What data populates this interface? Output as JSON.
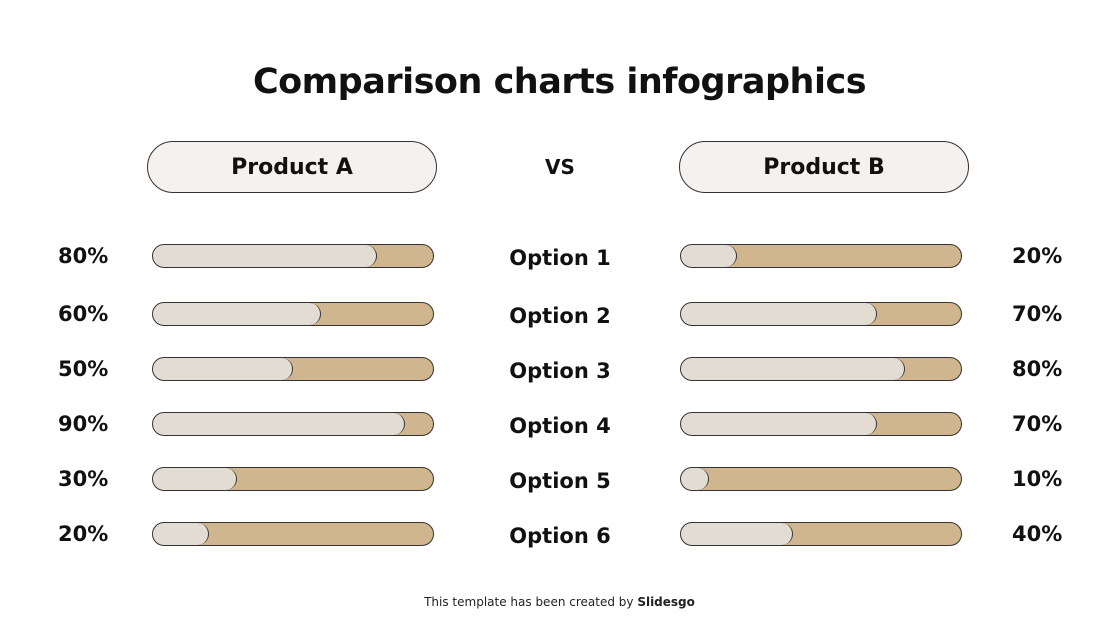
{
  "title": "Comparison charts infographics",
  "product_a": "Product A",
  "product_b": "Product B",
  "vs": "VS",
  "colors": {
    "fill": "#e3dcd3",
    "track": "#d0b68f",
    "pill_bg": "#f5f1ee",
    "outline": "#333333"
  },
  "rows": [
    {
      "option": "Option 1",
      "a_label": "80%",
      "a": 80,
      "b_label": "20%",
      "b": 20
    },
    {
      "option": "Option 2",
      "a_label": "60%",
      "a": 60,
      "b_label": "70%",
      "b": 70
    },
    {
      "option": "Option 3",
      "a_label": "50%",
      "a": 50,
      "b_label": "80%",
      "b": 80
    },
    {
      "option": "Option 4",
      "a_label": "90%",
      "a": 90,
      "b_label": "70%",
      "b": 70
    },
    {
      "option": "Option 5",
      "a_label": "30%",
      "a": 30,
      "b_label": "10%",
      "b": 10
    },
    {
      "option": "Option 6",
      "a_label": "20%",
      "a": 20,
      "b_label": "40%",
      "b": 40
    }
  ],
  "footer": {
    "text": "This template has been created by ",
    "brand": "Slidesgo"
  },
  "chart_data": {
    "type": "bar",
    "title": "Comparison charts infographics",
    "categories": [
      "Option 1",
      "Option 2",
      "Option 3",
      "Option 4",
      "Option 5",
      "Option 6"
    ],
    "series": [
      {
        "name": "Product A",
        "values": [
          80,
          60,
          50,
          90,
          30,
          20
        ]
      },
      {
        "name": "Product B",
        "values": [
          20,
          70,
          80,
          70,
          10,
          40
        ]
      }
    ],
    "xlabel": "",
    "ylabel": "",
    "ylim": [
      0,
      100
    ],
    "orientation": "horizontal",
    "grid": false,
    "legend": "pill headers above each column"
  }
}
